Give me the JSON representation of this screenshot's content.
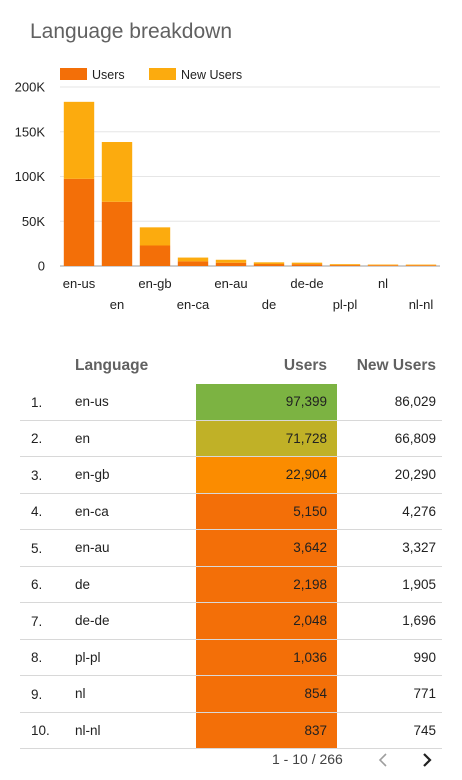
{
  "title": "Language breakdown",
  "legend": [
    {
      "label": "Users",
      "color": "#f36f08"
    },
    {
      "label": "New Users",
      "color": "#fcab0e"
    }
  ],
  "chart_data": {
    "type": "bar",
    "stacked": true,
    "categories": [
      "en-us",
      "en",
      "en-gb",
      "en-ca",
      "en-au",
      "de",
      "de-de",
      "pl-pl",
      "nl",
      "nl-nl"
    ],
    "series": [
      {
        "name": "Users",
        "color": "#f36f08",
        "values": [
          97399,
          71728,
          22904,
          5150,
          3642,
          2198,
          2048,
          1036,
          854,
          837
        ]
      },
      {
        "name": "New Users",
        "color": "#fcab0e",
        "values": [
          86029,
          66809,
          20290,
          4276,
          3327,
          1905,
          1696,
          990,
          771,
          745
        ]
      }
    ],
    "y_ticks": [
      "0",
      "50K",
      "100K",
      "150K",
      "200K"
    ],
    "ylim": [
      0,
      200000
    ],
    "grid": true,
    "legend_position": "top-left"
  },
  "table": {
    "columns": [
      "Language",
      "Users",
      "New Users"
    ],
    "rows": [
      {
        "index": "1.",
        "language": "en-us",
        "users": "97,399",
        "new_users": "86,029",
        "heat": "#7cb342"
      },
      {
        "index": "2.",
        "language": "en",
        "users": "71,728",
        "new_users": "66,809",
        "heat": "#c0b127"
      },
      {
        "index": "3.",
        "language": "en-gb",
        "users": "22,904",
        "new_users": "20,290",
        "heat": "#fb8c00"
      },
      {
        "index": "4.",
        "language": "en-ca",
        "users": "5,150",
        "new_users": "4,276",
        "heat": "#f36f08"
      },
      {
        "index": "5.",
        "language": "en-au",
        "users": "3,642",
        "new_users": "3,327",
        "heat": "#f36f08"
      },
      {
        "index": "6.",
        "language": "de",
        "users": "2,198",
        "new_users": "1,905",
        "heat": "#f36f08"
      },
      {
        "index": "7.",
        "language": "de-de",
        "users": "2,048",
        "new_users": "1,696",
        "heat": "#f36f08"
      },
      {
        "index": "8.",
        "language": "pl-pl",
        "users": "1,036",
        "new_users": "990",
        "heat": "#f36f08"
      },
      {
        "index": "9.",
        "language": "nl",
        "users": "854",
        "new_users": "771",
        "heat": "#f36f08"
      },
      {
        "index": "10.",
        "language": "nl-nl",
        "users": "837",
        "new_users": "745",
        "heat": "#f36f08"
      }
    ]
  },
  "pagination": {
    "text": "1 - 10 / 266",
    "prev_icon": "chevron-left-icon",
    "next_icon": "chevron-right-icon"
  }
}
